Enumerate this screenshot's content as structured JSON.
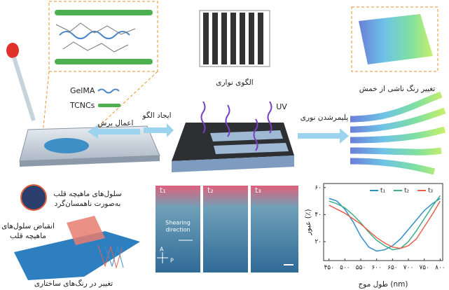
{
  "top": {
    "gelma": "GelMA",
    "tcncs": "TCNCs",
    "shear": "اعمال برش",
    "pattern": "ایجاد الگو",
    "stripe": "الگوی نواری",
    "uv": "UV",
    "photopoly": "پلیمرشدن نوری",
    "bend": "تغییر رنگ ناشی از خمش"
  },
  "bottom": {
    "cells": [
      "سلول‌های ماهیچه قلب",
      "به‌صورت ناهمسان‌گرد"
    ],
    "contraction": [
      "انقباض سلول‌های",
      "ماهیچه قلب"
    ],
    "color_change": "تغییر در رنگ‌های ساختاری"
  },
  "micrographs": {
    "labels": [
      "t₁",
      "t₂",
      "t₃"
    ],
    "shearing": [
      "Shearing",
      "direction"
    ],
    "a": "A",
    "p": "P"
  },
  "chart_data": {
    "type": "line",
    "x_label": "طول موج (nm)",
    "y_label": "عبور (٪)",
    "x": [
      450,
      475,
      500,
      525,
      550,
      575,
      600,
      625,
      650,
      675,
      700,
      725,
      750,
      775,
      800
    ],
    "series": [
      {
        "name": "t₁",
        "color": "#2f8fc8",
        "values": [
          52,
          50,
          44,
          35,
          24,
          16,
          13,
          14,
          17,
          22,
          29,
          36,
          43,
          48,
          52
        ]
      },
      {
        "name": "t₂",
        "color": "#3fae8a",
        "values": [
          50,
          48,
          45,
          40,
          34,
          27,
          21,
          17,
          14,
          15,
          20,
          28,
          37,
          46,
          54
        ]
      },
      {
        "name": "t₃",
        "color": "#e8604c",
        "values": [
          47,
          44,
          41,
          37,
          33,
          28,
          23,
          19,
          16,
          15,
          17,
          22,
          31,
          40,
          50
        ]
      }
    ],
    "xlim": [
      433,
      808
    ],
    "ylim": [
      6,
      63
    ],
    "xticks": [
      {
        "value": 450,
        "label": "۴۵۰"
      },
      {
        "value": 500,
        "label": "۵۰۰"
      },
      {
        "value": 550,
        "label": "۵۵۰"
      },
      {
        "value": 600,
        "label": "۶۰۰"
      },
      {
        "value": 650,
        "label": "۶۵۰"
      },
      {
        "value": 700,
        "label": "۷۰۰"
      },
      {
        "value": 750,
        "label": "۷۵۰"
      },
      {
        "value": 800,
        "label": "۸۰۰"
      }
    ],
    "yticks": [
      {
        "value": 20,
        "label": "۲۰"
      },
      {
        "value": 40,
        "label": "۴۰"
      },
      {
        "value": 60,
        "label": "۶۰"
      }
    ]
  }
}
